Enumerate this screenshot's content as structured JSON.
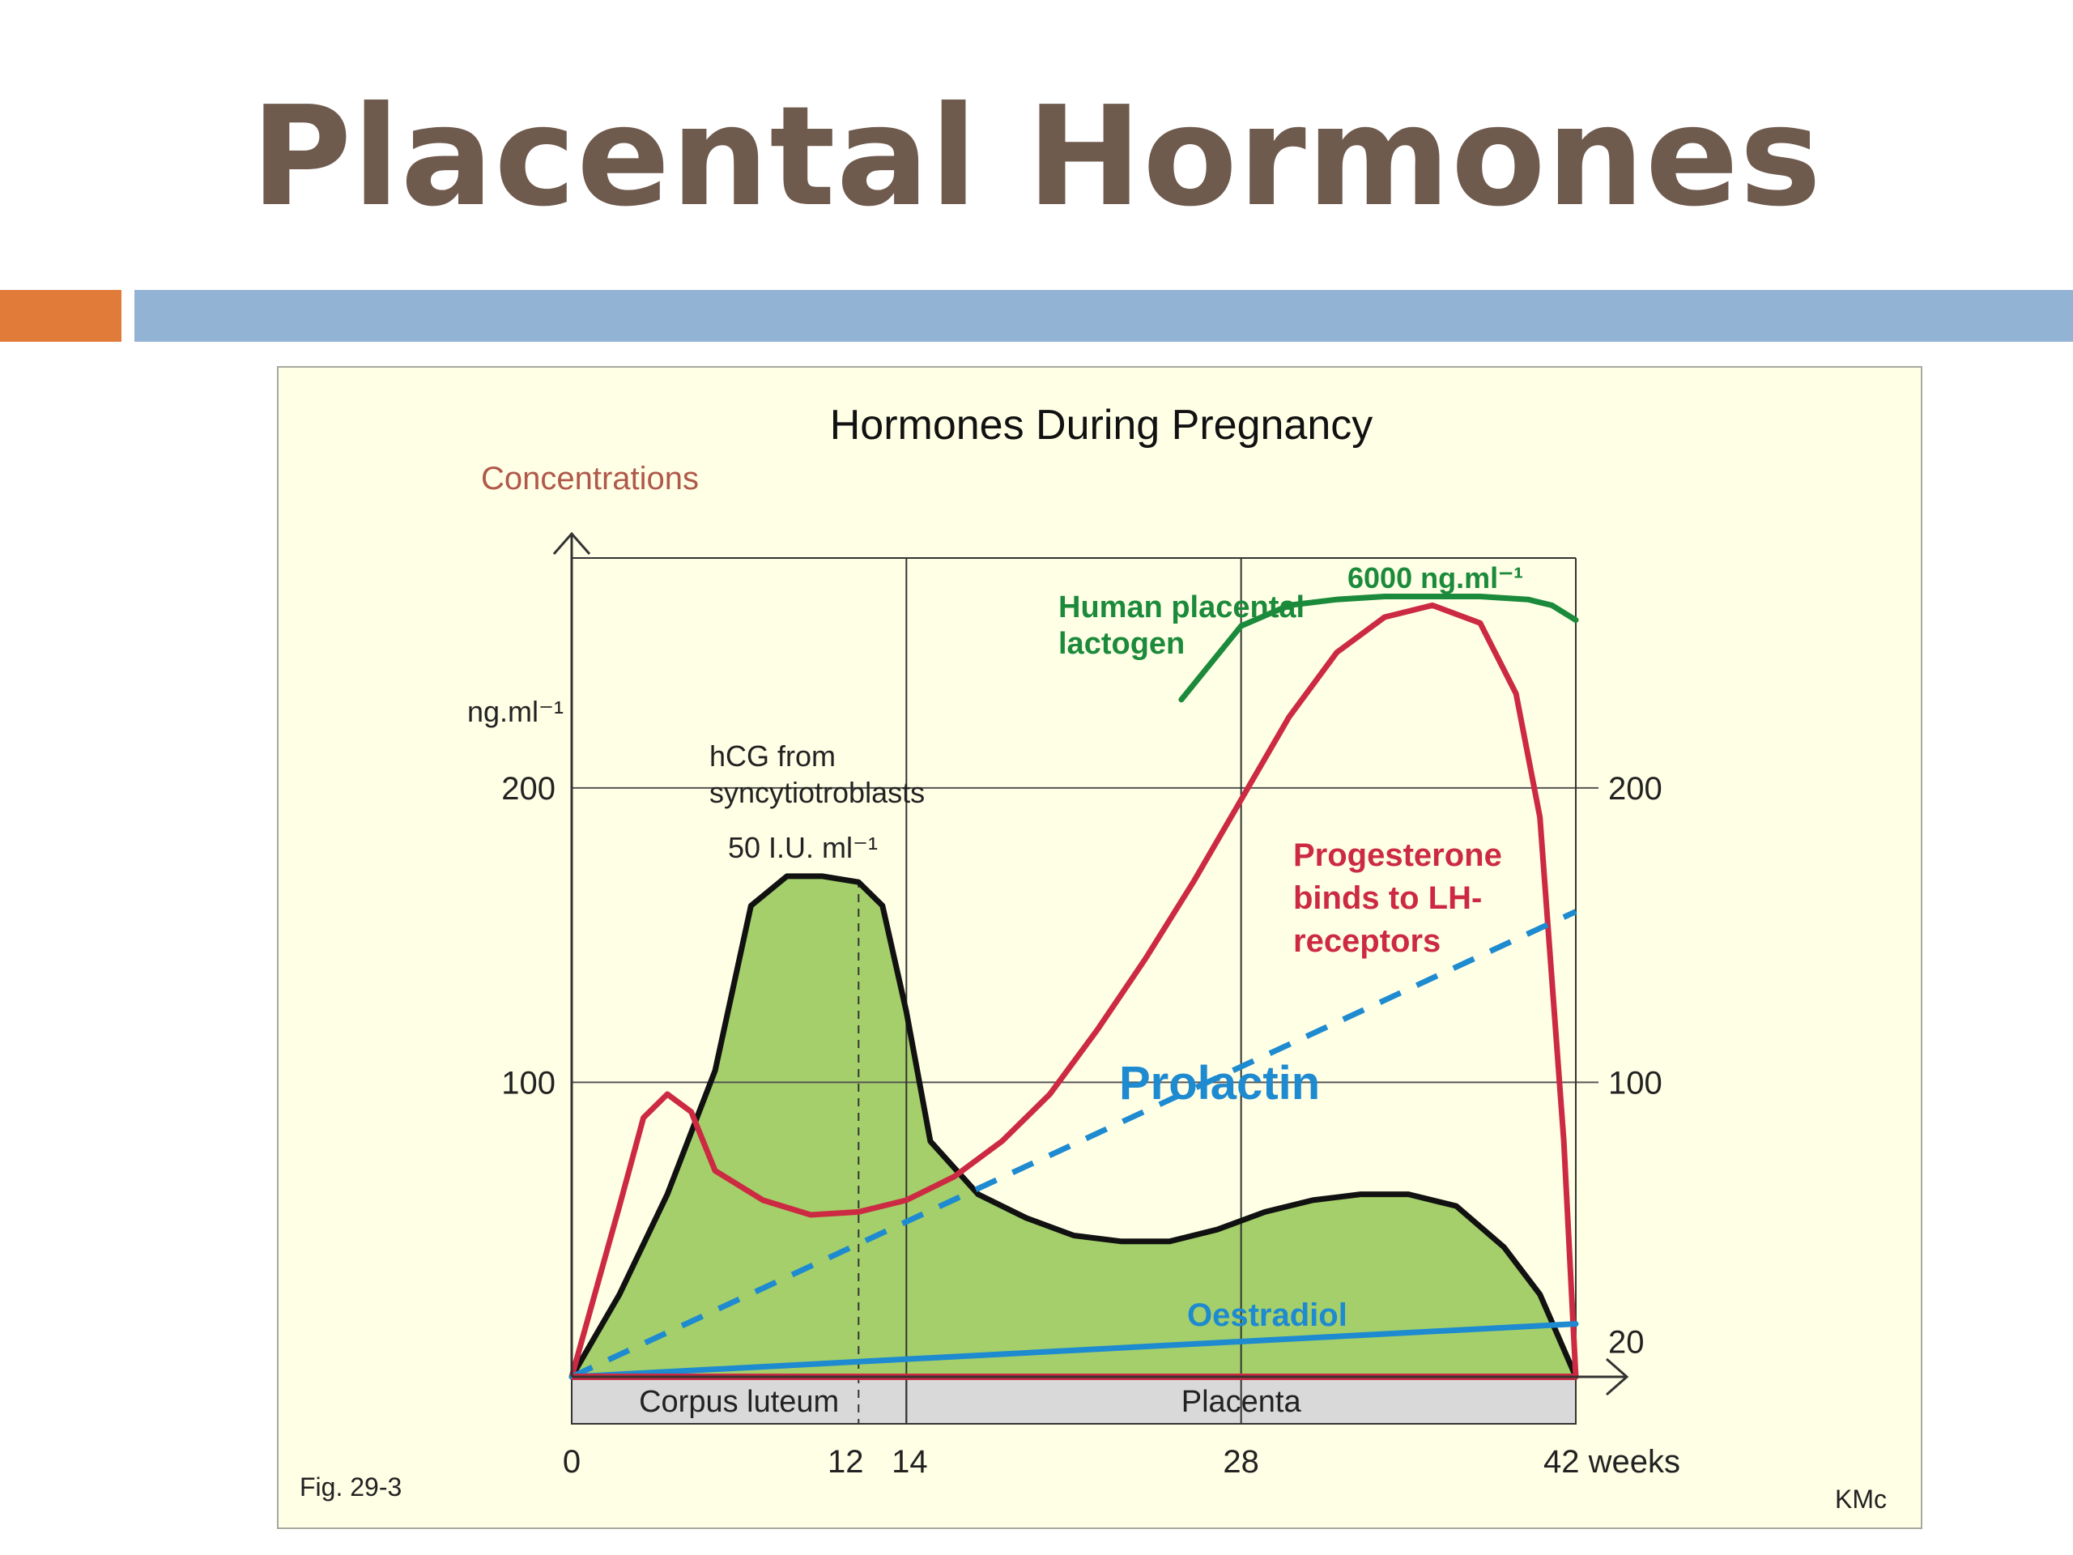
{
  "slide": {
    "title": "Placental Hormones"
  },
  "figure": {
    "fig_label": "Fig. 29-3",
    "credit": "KMc"
  },
  "colors": {
    "title": "#6f5a4e",
    "accent_orange": "#e07b39",
    "accent_blue": "#93b3d4",
    "panel_bg": "#ffffe6",
    "hcg_fill": "#a4cf6a",
    "hcg_line": "#111111",
    "progesterone": "#cc2a43",
    "hpl": "#1b8a3a",
    "prolactin": "#1e8ad0",
    "oestradiol": "#1e8ad0",
    "phase_bar": "#d9d9d9"
  },
  "chart_data": {
    "type": "line",
    "title": "Hormones During Pregnancy",
    "ylabel": "Concentrations",
    "y_unit_label": "ng.ml⁻¹",
    "xlabel": "weeks",
    "x_ticks": [
      "0",
      "12",
      "14",
      "28",
      "42 weeks"
    ],
    "x_tick_values": [
      0,
      12,
      14,
      28,
      42
    ],
    "y_ticks_left": [
      "200",
      "100"
    ],
    "y_ticks_right": [
      "200",
      "100",
      "20"
    ],
    "xlim": [
      0,
      42
    ],
    "ylim": [
      0,
      280
    ],
    "grid": true,
    "phases": [
      {
        "label": "Corpus luteum",
        "x_start": 0,
        "x_end": 14
      },
      {
        "label": "Placenta",
        "x_start": 14,
        "x_end": 42
      }
    ],
    "series": [
      {
        "name": "hCG from syncytiotroblasts",
        "peak_label": "50 I.U. ml⁻¹",
        "style": "filled",
        "x": [
          0,
          2,
          4,
          6,
          7.5,
          9,
          10.5,
          12,
          13,
          14,
          15,
          17,
          19,
          21,
          23,
          25,
          27,
          29,
          31,
          33,
          35,
          37,
          39,
          40.5,
          42
        ],
        "y": [
          0,
          28,
          62,
          104,
          160,
          170,
          170,
          168,
          160,
          124,
          80,
          62,
          54,
          48,
          46,
          46,
          50,
          56,
          60,
          62,
          62,
          58,
          44,
          28,
          0
        ]
      },
      {
        "name": "Progesterone binds to LH-receptors",
        "style": "solid",
        "x": [
          0,
          2,
          3,
          4,
          5,
          6,
          8,
          10,
          12,
          14,
          16,
          18,
          20,
          22,
          24,
          26,
          28,
          30,
          32,
          34,
          36,
          38,
          39.5,
          40.5,
          41.5,
          42
        ],
        "y": [
          0,
          58,
          88,
          96,
          90,
          70,
          60,
          55,
          56,
          60,
          68,
          80,
          96,
          118,
          142,
          168,
          196,
          224,
          246,
          258,
          262,
          256,
          232,
          190,
          80,
          0
        ]
      },
      {
        "name": "Human placental lactogen",
        "value_label": "6000 ng.ml⁻¹",
        "style": "solid",
        "x": [
          25.5,
          26.5,
          28,
          30,
          32,
          34,
          36,
          38,
          40,
          41,
          42
        ],
        "y": [
          230,
          240,
          255,
          262,
          264,
          265,
          265,
          265,
          264,
          262,
          257
        ]
      },
      {
        "name": "Prolactin",
        "style": "dashed",
        "x": [
          0,
          42
        ],
        "y": [
          0,
          158
        ]
      },
      {
        "name": "Oestradiol",
        "style": "solid",
        "x": [
          0,
          42
        ],
        "y": [
          0,
          18
        ]
      }
    ]
  }
}
